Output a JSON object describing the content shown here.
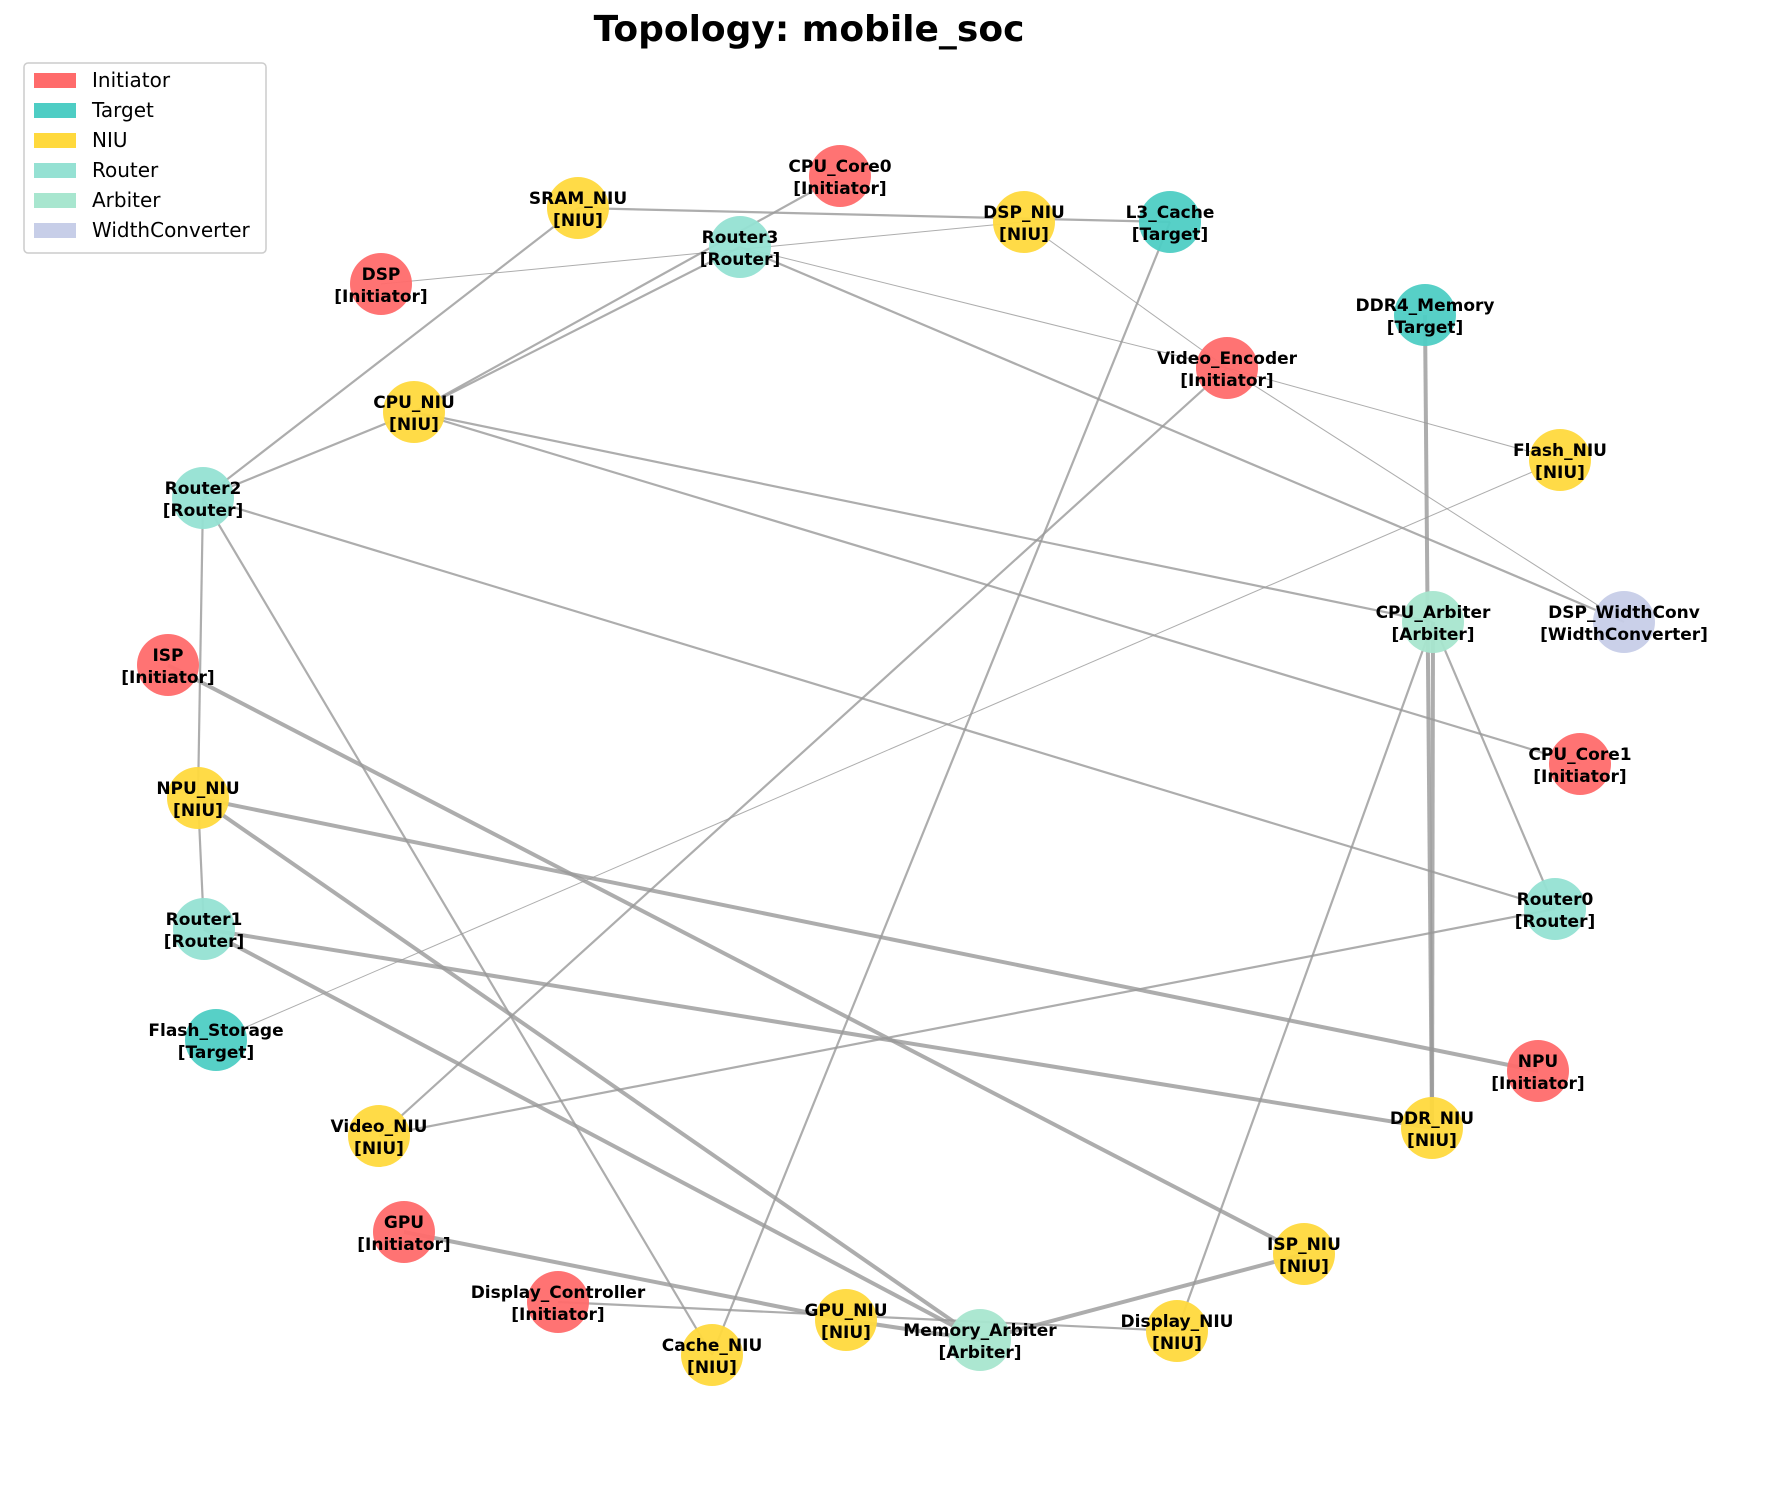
{
  "title": "Topology: mobile_soc",
  "legend": [
    {
      "label": "Initiator",
      "color": "#ff6b6b"
    },
    {
      "label": "Target",
      "color": "#4ecdc4"
    },
    {
      "label": "NIU",
      "color": "#ffd93d"
    },
    {
      "label": "Router",
      "color": "#95e1d3"
    },
    {
      "label": "Arbiter",
      "color": "#a8e6cf"
    },
    {
      "label": "WidthConverter",
      "color": "#c7cee8"
    }
  ],
  "nodes": [
    {
      "id": "CPU_Core0",
      "type": "Initiator",
      "label": "CPU_Core0",
      "type_label": "[Initiator]"
    },
    {
      "id": "SRAM_NIU",
      "type": "NIU",
      "label": "SRAM_NIU",
      "type_label": "[NIU]"
    },
    {
      "id": "DSP_NIU",
      "type": "NIU",
      "label": "DSP_NIU",
      "type_label": "[NIU]"
    },
    {
      "id": "L3_Cache",
      "type": "Target",
      "label": "L3_Cache",
      "type_label": "[Target]"
    },
    {
      "id": "Router3",
      "type": "Router",
      "label": "Router3",
      "type_label": "[Router]"
    },
    {
      "id": "DSP",
      "type": "Initiator",
      "label": "DSP",
      "type_label": "[Initiator]"
    },
    {
      "id": "DDR4_Memory",
      "type": "Target",
      "label": "DDR4_Memory",
      "type_label": "[Target]"
    },
    {
      "id": "Video_Encoder",
      "type": "Initiator",
      "label": "Video_Encoder",
      "type_label": "[Initiator]"
    },
    {
      "id": "CPU_NIU",
      "type": "NIU",
      "label": "CPU_NIU",
      "type_label": "[NIU]"
    },
    {
      "id": "Flash_NIU",
      "type": "NIU",
      "label": "Flash_NIU",
      "type_label": "[NIU]"
    },
    {
      "id": "Router2",
      "type": "Router",
      "label": "Router2",
      "type_label": "[Router]"
    },
    {
      "id": "CPU_Arbiter",
      "type": "Arbiter",
      "label": "CPU_Arbiter",
      "type_label": "[Arbiter]"
    },
    {
      "id": "DSP_WidthConv",
      "type": "WidthConverter",
      "label": "DSP_WidthConv",
      "type_label": "[WidthConverter]"
    },
    {
      "id": "ISP",
      "type": "Initiator",
      "label": "ISP",
      "type_label": "[Initiator]"
    },
    {
      "id": "CPU_Core1",
      "type": "Initiator",
      "label": "CPU_Core1",
      "type_label": "[Initiator]"
    },
    {
      "id": "NPU_NIU",
      "type": "NIU",
      "label": "NPU_NIU",
      "type_label": "[NIU]"
    },
    {
      "id": "Router0",
      "type": "Router",
      "label": "Router0",
      "type_label": "[Router]"
    },
    {
      "id": "Router1",
      "type": "Router",
      "label": "Router1",
      "type_label": "[Router]"
    },
    {
      "id": "Flash_Storage",
      "type": "Target",
      "label": "Flash_Storage",
      "type_label": "[Target]"
    },
    {
      "id": "NPU",
      "type": "Initiator",
      "label": "NPU",
      "type_label": "[Initiator]"
    },
    {
      "id": "Video_NIU",
      "type": "NIU",
      "label": "Video_NIU",
      "type_label": "[NIU]"
    },
    {
      "id": "DDR_NIU",
      "type": "NIU",
      "label": "DDR_NIU",
      "type_label": "[NIU]"
    },
    {
      "id": "GPU",
      "type": "Initiator",
      "label": "GPU",
      "type_label": "[Initiator]"
    },
    {
      "id": "ISP_NIU",
      "type": "NIU",
      "label": "ISP_NIU",
      "type_label": "[NIU]"
    },
    {
      "id": "Display_Controller",
      "type": "Initiator",
      "label": "Display_Controller",
      "type_label": "[Initiator]"
    },
    {
      "id": "GPU_NIU",
      "type": "NIU",
      "label": "GPU_NIU",
      "type_label": "[NIU]"
    },
    {
      "id": "Memory_Arbiter",
      "type": "Arbiter",
      "label": "Memory_Arbiter",
      "type_label": "[Arbiter]"
    },
    {
      "id": "Display_NIU",
      "type": "NIU",
      "label": "Display_NIU",
      "type_label": "[NIU]"
    },
    {
      "id": "Cache_NIU",
      "type": "NIU",
      "label": "Cache_NIU",
      "type_label": "[NIU]"
    }
  ],
  "edges": [
    {
      "from": "SRAM_NIU",
      "to": "L3_Cache",
      "weight": "medium"
    },
    {
      "from": "CPU_Core0",
      "to": "CPU_NIU",
      "weight": "medium"
    },
    {
      "from": "DSP",
      "to": "DSP_NIU",
      "weight": "thin"
    },
    {
      "from": "DSP_NIU",
      "to": "Video_Encoder",
      "weight": "thin"
    },
    {
      "from": "Router3",
      "to": "CPU_NIU",
      "weight": "medium"
    },
    {
      "from": "Router3",
      "to": "Video_Encoder",
      "weight": "thin"
    },
    {
      "from": "Router3",
      "to": "DSP_WidthConv",
      "weight": "medium"
    },
    {
      "from": "SRAM_NIU",
      "to": "Router2",
      "weight": "medium"
    },
    {
      "from": "L3_Cache",
      "to": "Cache_NIU",
      "weight": "medium"
    },
    {
      "from": "Video_Encoder",
      "to": "Video_NIU",
      "weight": "medium"
    },
    {
      "from": "Video_Encoder",
      "to": "Flash_NIU",
      "weight": "thin"
    },
    {
      "from": "Video_Encoder",
      "to": "DSP_WidthConv",
      "weight": "thin"
    },
    {
      "from": "DDR4_Memory",
      "to": "DDR_NIU",
      "weight": "heavy"
    },
    {
      "from": "CPU_NIU",
      "to": "Router2",
      "weight": "medium"
    },
    {
      "from": "CPU_NIU",
      "to": "CPU_Arbiter",
      "weight": "medium"
    },
    {
      "from": "CPU_NIU",
      "to": "CPU_Core1",
      "weight": "medium"
    },
    {
      "from": "Flash_NIU",
      "to": "Flash_Storage",
      "weight": "thin"
    },
    {
      "from": "Router2",
      "to": "Router0",
      "weight": "medium"
    },
    {
      "from": "Router2",
      "to": "NPU_NIU",
      "weight": "medium"
    },
    {
      "from": "Router2",
      "to": "Cache_NIU",
      "weight": "medium"
    },
    {
      "from": "CPU_Arbiter",
      "to": "Router0",
      "weight": "medium"
    },
    {
      "from": "CPU_Arbiter",
      "to": "DDR_NIU",
      "weight": "heavy"
    },
    {
      "from": "CPU_Arbiter",
      "to": "Display_NIU",
      "weight": "medium"
    },
    {
      "from": "ISP",
      "to": "ISP_NIU",
      "weight": "heavy"
    },
    {
      "from": "NPU_NIU",
      "to": "NPU",
      "weight": "heavy"
    },
    {
      "from": "NPU_NIU",
      "to": "Router1",
      "weight": "medium"
    },
    {
      "from": "NPU_NIU",
      "to": "Memory_Arbiter",
      "weight": "heavy"
    },
    {
      "from": "Router1",
      "to": "DDR_NIU",
      "weight": "heavy"
    },
    {
      "from": "Router1",
      "to": "Memory_Arbiter",
      "weight": "heavy"
    },
    {
      "from": "Router0",
      "to": "Video_NIU",
      "weight": "medium"
    },
    {
      "from": "GPU",
      "to": "GPU_NIU",
      "weight": "heavy"
    },
    {
      "from": "GPU_NIU",
      "to": "Memory_Arbiter",
      "weight": "heavy"
    },
    {
      "from": "Display_Controller",
      "to": "Display_NIU",
      "weight": "medium"
    },
    {
      "from": "ISP_NIU",
      "to": "Memory_Arbiter",
      "weight": "heavy"
    }
  ]
}
